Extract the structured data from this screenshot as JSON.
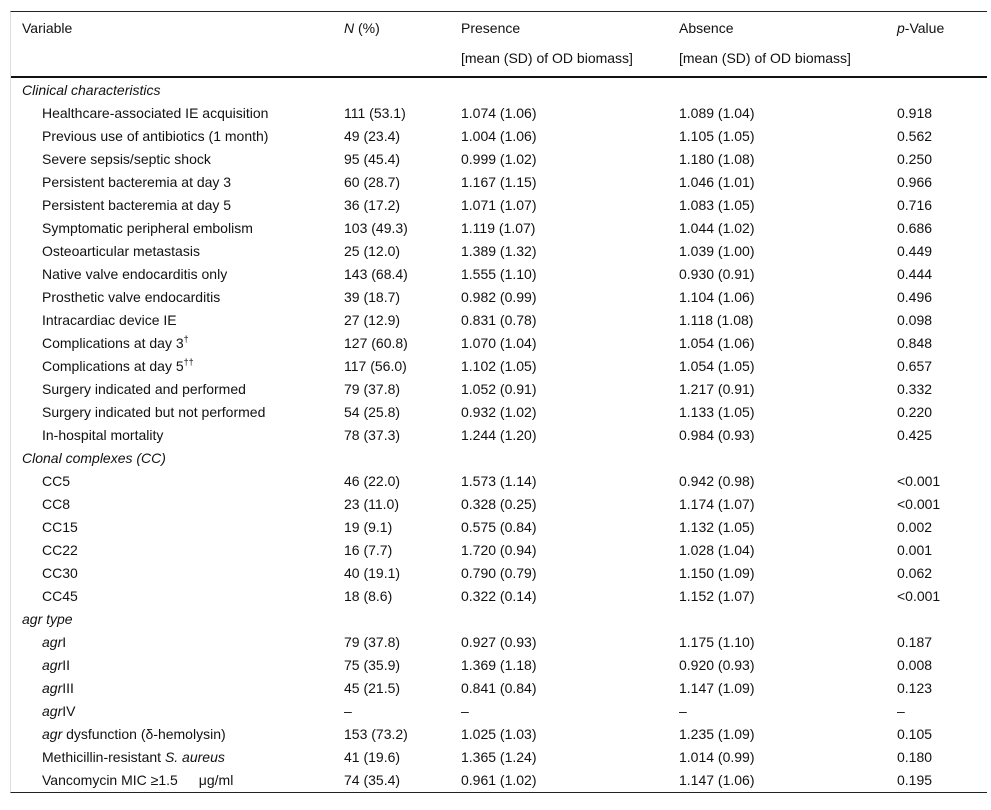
{
  "header": {
    "variable": "Variable",
    "n_italic": "N",
    "n_rest": " (%)",
    "presence": "Presence",
    "presence_sub": "[mean (SD) of OD biomass]",
    "absence": "Absence",
    "absence_sub": "[mean (SD) of OD biomass]",
    "p_italic": "p",
    "p_rest": "-Value"
  },
  "rows": [
    {
      "section": "Clinical characteristics"
    },
    {
      "label": "Healthcare-associated IE acquisition",
      "n": "111 (53.1)",
      "presence": "1.074 (1.06)",
      "absence": "1.089 (1.04)",
      "p": "0.918"
    },
    {
      "label": "Previous use of antibiotics (1 month)",
      "n": "49 (23.4)",
      "presence": "1.004 (1.06)",
      "absence": "1.105 (1.05)",
      "p": "0.562"
    },
    {
      "label": "Severe sepsis/septic shock",
      "n": "95 (45.4)",
      "presence": "0.999 (1.02)",
      "absence": "1.180 (1.08)",
      "p": "0.250"
    },
    {
      "label": "Persistent bacteremia at day 3",
      "n": "60 (28.7)",
      "presence": "1.167 (1.15)",
      "absence": "1.046 (1.01)",
      "p": "0.966"
    },
    {
      "label": "Persistent bacteremia at day 5",
      "n": "36 (17.2)",
      "presence": "1.071 (1.07)",
      "absence": "1.083 (1.05)",
      "p": "0.716"
    },
    {
      "label": "Symptomatic peripheral embolism",
      "n": "103 (49.3)",
      "presence": "1.119 (1.07)",
      "absence": "1.044 (1.02)",
      "p": "0.686"
    },
    {
      "label": "Osteoarticular metastasis",
      "n": "25 (12.0)",
      "presence": "1.389 (1.32)",
      "absence": "1.039 (1.00)",
      "p": "0.449"
    },
    {
      "label": "Native valve endocarditis only",
      "n": "143 (68.4)",
      "presence": "1.555 (1.10)",
      "absence": "0.930 (0.91)",
      "p": "0.444"
    },
    {
      "label": "Prosthetic valve endocarditis",
      "n": "39 (18.7)",
      "presence": "0.982 (0.99)",
      "absence": "1.104 (1.06)",
      "p": "0.496"
    },
    {
      "label": "Intracardiac device IE",
      "n": "27 (12.9)",
      "presence": "0.831 (0.78)",
      "absence": "1.118 (1.08)",
      "p": "0.098"
    },
    {
      "label": "Complications at day 3",
      "sup": "†",
      "n": "127 (60.8)",
      "presence": "1.070 (1.04)",
      "absence": "1.054 (1.06)",
      "p": "0.848"
    },
    {
      "label": "Complications at day 5",
      "sup": "††",
      "n": "117 (56.0)",
      "presence": "1.102 (1.05)",
      "absence": "1.054 (1.05)",
      "p": "0.657"
    },
    {
      "label": "Surgery indicated and performed",
      "n": "79 (37.8)",
      "presence": "1.052 (0.91)",
      "absence": "1.217 (0.91)",
      "p": "0.332"
    },
    {
      "label": "Surgery indicated but not performed",
      "n": "54 (25.8)",
      "presence": "0.932 (1.02)",
      "absence": "1.133 (1.05)",
      "p": "0.220"
    },
    {
      "label": "In-hospital mortality",
      "n": "78 (37.3)",
      "presence": "1.244 (1.20)",
      "absence": "0.984 (0.93)",
      "p": "0.425"
    },
    {
      "section": "Clonal complexes (CC)"
    },
    {
      "label": "CC5",
      "n": "46 (22.0)",
      "presence": "1.573 (1.14)",
      "absence": "0.942 (0.98)",
      "p": "<0.001"
    },
    {
      "label": "CC8",
      "n": "23 (11.0)",
      "presence": "0.328 (0.25)",
      "absence": "1.174 (1.07)",
      "p": "<0.001"
    },
    {
      "label": "CC15",
      "n": "19 (9.1)",
      "presence": "0.575 (0.84)",
      "absence": "1.132 (1.05)",
      "p": "0.002"
    },
    {
      "label": "CC22",
      "n": "16 (7.7)",
      "presence": "1.720 (0.94)",
      "absence": "1.028 (1.04)",
      "p": "0.001"
    },
    {
      "label": "CC30",
      "n": "40 (19.1)",
      "presence": "0.790 (0.79)",
      "absence": "1.150 (1.09)",
      "p": "0.062"
    },
    {
      "label": "CC45",
      "n": "18 (8.6)",
      "presence": "0.322 (0.14)",
      "absence": "1.152 (1.07)",
      "p": "<0.001"
    },
    {
      "section": "agr type"
    },
    {
      "italic": "agr",
      "label": "I",
      "n": "79 (37.8)",
      "presence": "0.927 (0.93)",
      "absence": "1.175 (1.10)",
      "p": "0.187"
    },
    {
      "italic": "agr",
      "label": "II",
      "n": "75 (35.9)",
      "presence": "1.369 (1.18)",
      "absence": "0.920 (0.93)",
      "p": "0.008"
    },
    {
      "italic": "agr",
      "label": "III",
      "n": "45 (21.5)",
      "presence": "0.841 (0.84)",
      "absence": "1.147 (1.09)",
      "p": "0.123"
    },
    {
      "italic": "agr",
      "label": "IV",
      "n": "–",
      "presence": "–",
      "absence": "–",
      "p": "–"
    },
    {
      "italic": "agr",
      "label": " dysfunction (δ-hemolysin)",
      "n": "153 (73.2)",
      "presence": "1.025 (1.03)",
      "absence": "1.235 (1.09)",
      "p": "0.105"
    },
    {
      "label": "Methicillin-resistant ",
      "italic_after": "S. aureus",
      "n": "41 (19.6)",
      "presence": "1.365 (1.24)",
      "absence": "1.014 (0.99)",
      "p": "0.180"
    },
    {
      "label": "Vancomycin MIC ≥1.5  μg/ml",
      "n": "74 (35.4)",
      "presence": "0.961 (1.02)",
      "absence": "1.147 (1.06)",
      "p": "0.195"
    }
  ]
}
